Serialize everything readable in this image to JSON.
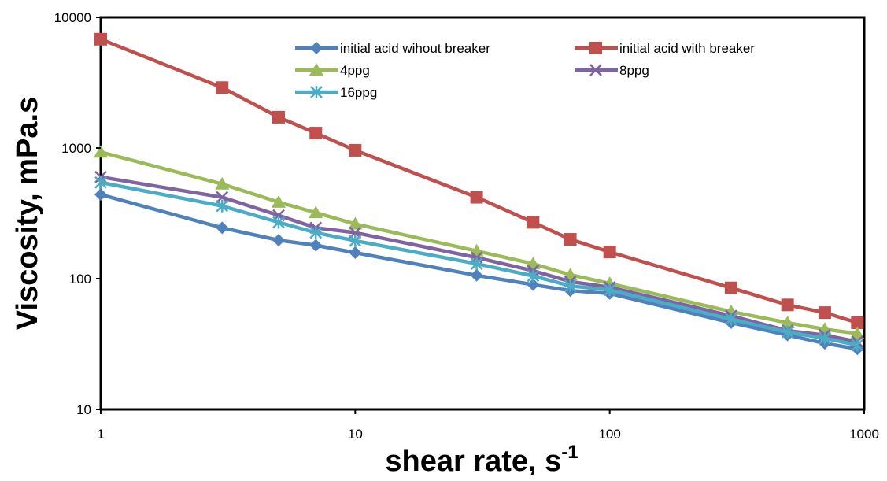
{
  "chart_data": {
    "type": "line",
    "title": "",
    "xlabel": "shear rate, s",
    "xlabel_sup": "-1",
    "ylabel": "Viscosity, mPa.s",
    "xscale": "log",
    "yscale": "log",
    "xlim": [
      1,
      1000
    ],
    "ylim": [
      10,
      10000
    ],
    "xticks": [
      "1",
      "10",
      "100",
      "1000"
    ],
    "yticks": [
      "10",
      "100",
      "1000",
      "10000"
    ],
    "grid": false,
    "legend_position": "top-right",
    "x": [
      1,
      3,
      5,
      7,
      10,
      30,
      50,
      70,
      100,
      300,
      500,
      700,
      940
    ],
    "series": [
      {
        "name": "initial acid wihout breaker",
        "color": "#4f81bd",
        "marker": "diamond",
        "values": [
          440,
          245,
          197,
          180,
          158,
          106,
          90,
          81,
          77,
          46,
          37,
          32,
          29
        ]
      },
      {
        "name": "initial acid with breaker",
        "color": "#c0504d",
        "marker": "square",
        "values": [
          6800,
          2900,
          1720,
          1300,
          960,
          420,
          270,
          200,
          160,
          85,
          63,
          55,
          46
        ]
      },
      {
        "name": "4ppg",
        "color": "#9bbb59",
        "marker": "triangle",
        "values": [
          930,
          530,
          385,
          320,
          262,
          163,
          130,
          107,
          92,
          56,
          46,
          41,
          38
        ]
      },
      {
        "name": "8ppg",
        "color": "#8064a2",
        "marker": "x",
        "values": [
          600,
          420,
          305,
          245,
          225,
          145,
          115,
          95,
          86,
          52,
          40,
          37,
          33
        ]
      },
      {
        "name": "16ppg",
        "color": "#4bacc6",
        "marker": "asterisk",
        "values": [
          545,
          360,
          270,
          225,
          195,
          130,
          105,
          88,
          82,
          49,
          39,
          35,
          31
        ]
      }
    ]
  }
}
